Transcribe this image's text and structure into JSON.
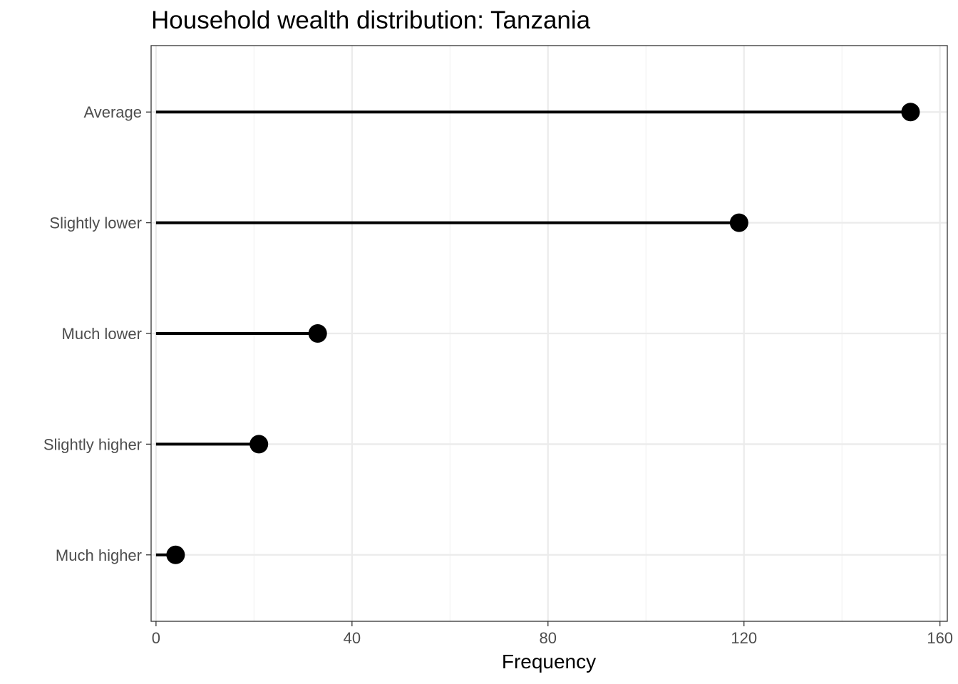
{
  "chart_data": {
    "type": "lollipop",
    "title": "Household wealth distribution: Tanzania",
    "xlabel": "Frequency",
    "ylabel": "",
    "xlim": [
      0,
      160
    ],
    "x_ticks": [
      0,
      40,
      80,
      120,
      160
    ],
    "x_tick_labels": [
      "0",
      "40",
      "80",
      "120",
      "160"
    ],
    "categories": [
      "Much higher",
      "Slightly higher",
      "Much lower",
      "Slightly lower",
      "Average"
    ],
    "values": [
      4,
      21,
      33,
      119,
      154
    ],
    "grid": true,
    "legend": "none",
    "colors": {
      "mark": "#000000",
      "grid_major": "#ebebeb",
      "grid_minor": "#f2f2f2",
      "panel_border": "#333333",
      "tick_label": "#4d4d4d"
    }
  }
}
